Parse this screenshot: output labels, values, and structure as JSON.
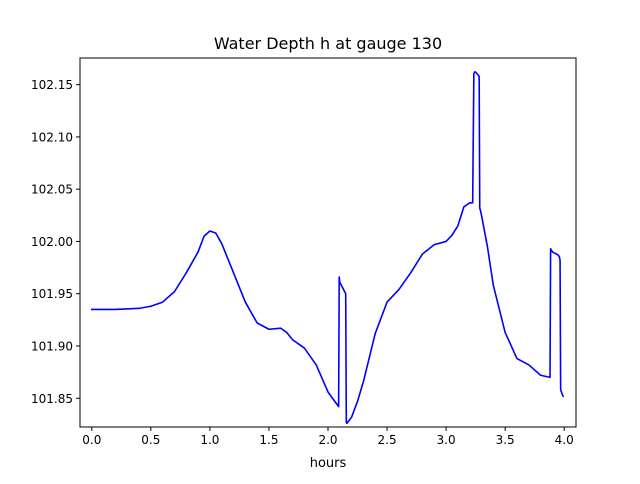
{
  "chart_data": {
    "type": "line",
    "title": "Water Depth h at gauge 130",
    "xlabel": "hours",
    "ylabel": "",
    "xlim": [
      -0.1,
      4.1
    ],
    "ylim": [
      101.8225,
      102.1755
    ],
    "x_ticks": [
      0.0,
      0.5,
      1.0,
      1.5,
      2.0,
      2.5,
      3.0,
      3.5,
      4.0
    ],
    "x_tick_labels": [
      "0.0",
      "0.5",
      "1.0",
      "1.5",
      "2.0",
      "2.5",
      "3.0",
      "3.5",
      "4.0"
    ],
    "y_ticks": [
      101.85,
      101.9,
      101.95,
      102.0,
      102.05,
      102.1,
      102.15
    ],
    "y_tick_labels": [
      "101.85",
      "101.90",
      "101.95",
      "102.00",
      "102.05",
      "102.10",
      "102.15"
    ],
    "grid": false,
    "legend": "none",
    "series": [
      {
        "color": "#0000ff",
        "x": [
          0.0,
          0.2,
          0.4,
          0.5,
          0.6,
          0.7,
          0.8,
          0.9,
          0.95,
          1.0,
          1.05,
          1.1,
          1.2,
          1.3,
          1.4,
          1.5,
          1.6,
          1.65,
          1.7,
          1.8,
          1.9,
          2.0,
          2.09,
          2.095,
          2.1,
          2.15,
          2.155,
          2.16,
          2.2,
          2.25,
          2.3,
          2.4,
          2.5,
          2.6,
          2.7,
          2.8,
          2.9,
          3.0,
          3.05,
          3.1,
          3.15,
          3.2,
          3.225,
          3.235,
          3.24,
          3.25,
          3.28,
          3.285,
          3.29,
          3.3,
          3.35,
          3.4,
          3.5,
          3.6,
          3.7,
          3.8,
          3.88,
          3.885,
          3.9,
          3.95,
          3.96,
          3.965,
          3.97,
          3.99
        ],
        "y": [
          101.935,
          101.935,
          101.936,
          101.938,
          101.942,
          101.952,
          101.97,
          101.99,
          102.005,
          102.01,
          102.008,
          101.998,
          101.97,
          101.942,
          101.922,
          101.916,
          101.917,
          101.913,
          101.906,
          101.898,
          101.882,
          101.856,
          101.842,
          101.966,
          101.961,
          101.95,
          101.827,
          101.826,
          101.832,
          101.847,
          101.866,
          101.912,
          101.942,
          101.954,
          101.97,
          101.988,
          101.997,
          102.0,
          102.006,
          102.015,
          102.033,
          102.037,
          102.037,
          102.16,
          102.162,
          102.162,
          102.158,
          102.032,
          102.03,
          102.025,
          101.995,
          101.958,
          101.913,
          101.888,
          101.882,
          101.872,
          101.87,
          101.993,
          101.99,
          101.987,
          101.985,
          101.982,
          101.858,
          101.852
        ]
      }
    ]
  }
}
